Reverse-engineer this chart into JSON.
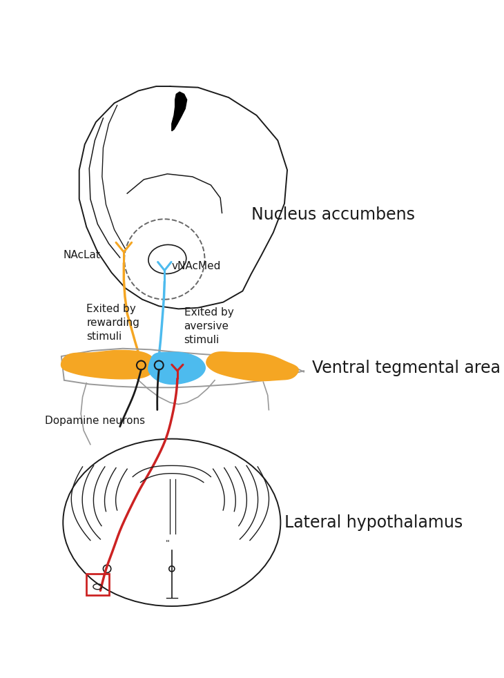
{
  "background_color": "#ffffff",
  "title_fontsize": 17,
  "small_fontsize": 11,
  "orange_color": "#F5A623",
  "blue_color": "#4DBBEE",
  "red_color": "#CC2222",
  "black_color": "#1a1a1a",
  "gray_color": "#999999",
  "labels": {
    "nucleus_accumbens": "Nucleus accumbens",
    "ventral_tegmental": "Ventral tegmental area",
    "lateral_hypothalamus": "Lateral hypothalamus",
    "naclat": "NAcLat",
    "vnacmed": "vNAcMed",
    "dopamine": "Dopamine neurons",
    "excited_rewarding": "Exited by\nrewarding\nstimuli",
    "excited_aversive": "Exited by\naversive\nstimuli"
  }
}
